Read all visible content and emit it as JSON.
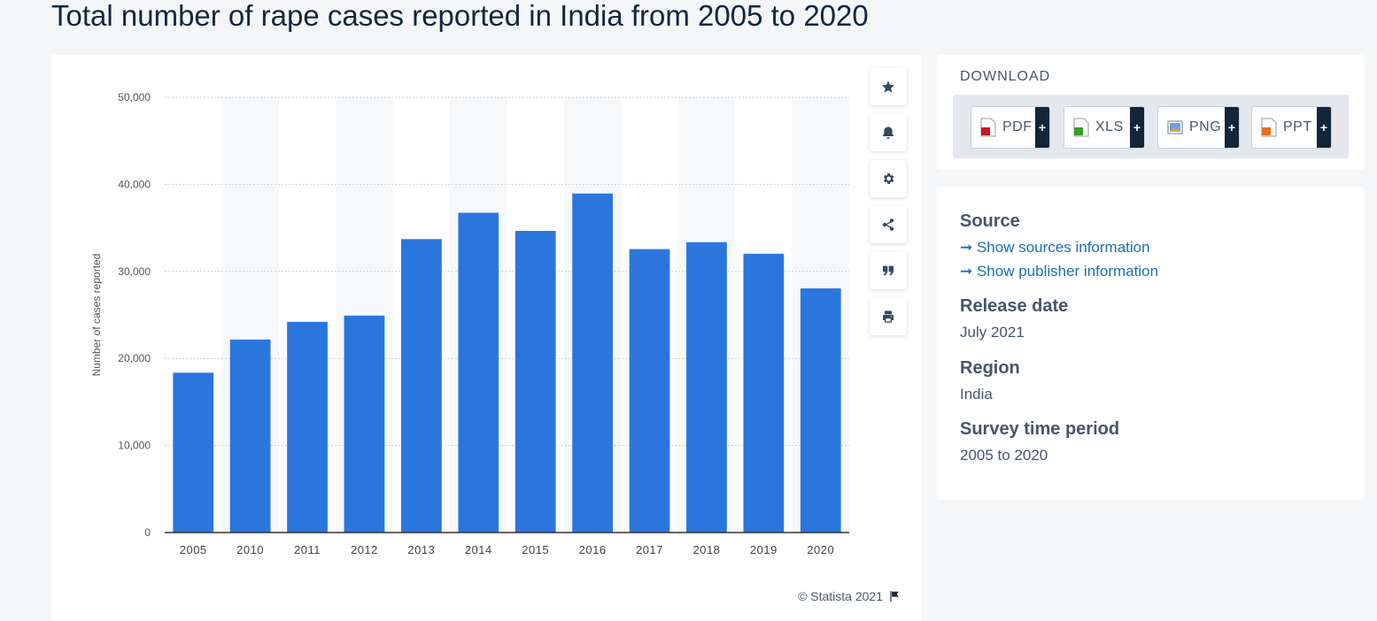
{
  "page": {
    "title": "Total number of rape cases reported in India from 2005 to 2020"
  },
  "chart_data": {
    "type": "bar",
    "categories": [
      "2005",
      "2010",
      "2011",
      "2012",
      "2013",
      "2014",
      "2015",
      "2016",
      "2017",
      "2018",
      "2019",
      "2020"
    ],
    "values": [
      18359,
      22172,
      24206,
      24923,
      33707,
      36735,
      34651,
      38947,
      32559,
      33356,
      32033,
      28046
    ],
    "ylabel": "Number of cases reported",
    "ylim": [
      0,
      50000
    ],
    "yticks": [
      0,
      10000,
      20000,
      30000,
      40000,
      50000
    ],
    "ytick_labels": [
      "0",
      "10,000",
      "20,000",
      "30,000",
      "40,000",
      "50,000"
    ],
    "bar_color": "#2a76dd",
    "grid": true
  },
  "copyright": "© Statista 2021",
  "download": {
    "title": "DOWNLOAD",
    "buttons": [
      {
        "label": "PDF",
        "icon": "pdf-icon"
      },
      {
        "label": "XLS",
        "icon": "xls-icon"
      },
      {
        "label": "PNG",
        "icon": "png-icon"
      },
      {
        "label": "PPT",
        "icon": "ppt-icon"
      }
    ],
    "plus": "+"
  },
  "info": {
    "source_heading": "Source",
    "sources_link": "➞ Show sources information",
    "publisher_link": "➞ Show publisher information",
    "release_heading": "Release date",
    "release_value": "July 2021",
    "region_heading": "Region",
    "region_value": "India",
    "period_heading": "Survey time period",
    "period_value": "2005 to 2020"
  },
  "tools": [
    "star-icon",
    "bell-icon",
    "gear-icon",
    "share-icon",
    "quote-icon",
    "print-icon"
  ]
}
